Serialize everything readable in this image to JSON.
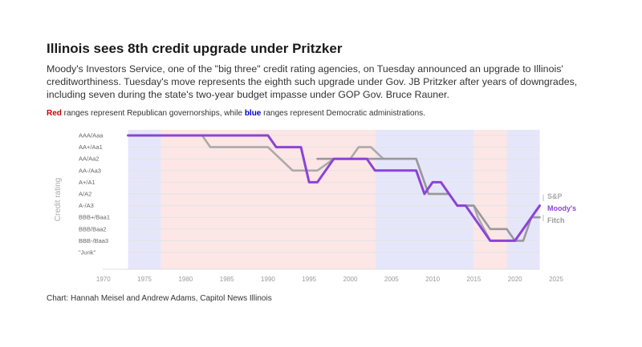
{
  "title": "Illinois sees 8th credit upgrade under Pritzker",
  "subtitle": "Moody's Investors Service, one of the \"big three\" credit rating agencies, on Tuesday announced an upgrade to Illinois' creditworthiness. Tuesday's move represents the eighth such upgrade under Gov. JB Pritzker after years of downgrades, including seven during the state's two-year budget impasse under GOP Gov. Bruce Rauner.",
  "note": {
    "red_word": "Red",
    "mid_text": " ranges represent Republican governorships, while ",
    "blue_word": "blue",
    "end_text": " ranges represent Democratic administrations."
  },
  "source": "Chart: Hannah Meisel and Andrew Adams, Capitol News Illinois",
  "colors": {
    "moodys": "#8b44d6",
    "sp": "#aaaaaa",
    "fitch": "#999999",
    "republican_band": "#fde6e6",
    "democratic_band": "#e6e6fb",
    "gridline": "#e3e3e3"
  },
  "chart_data": {
    "type": "line",
    "title": "Illinois sees 8th credit upgrade under Pritzker",
    "ylabel": "Credit rating",
    "xlim": [
      1967,
      2025
    ],
    "x_ticks": [
      "1970",
      "1975",
      "1980",
      "1985",
      "1990",
      "1995",
      "2000",
      "2005",
      "2010",
      "2015",
      "2020",
      "2025"
    ],
    "y_categories": [
      "AAA/Aaa",
      "AA+/Aa1",
      "AA/Aa2",
      "AA-/Aa3",
      "A+/A1",
      "A/A2",
      "A-/A3",
      "BBB+/Baa1",
      "BBB/Baa2",
      "BBB-/Baa3",
      "\"Junk\""
    ],
    "grid": true,
    "bands": [
      {
        "party": "Democratic",
        "from": 1973,
        "to": 1977
      },
      {
        "party": "Republican",
        "from": 1977,
        "to": 2003
      },
      {
        "party": "Democratic",
        "from": 2003,
        "to": 2015
      },
      {
        "party": "Republican",
        "from": 2015,
        "to": 2019
      },
      {
        "party": "Democratic",
        "from": 2019,
        "to": 2023
      }
    ],
    "series": [
      {
        "name": "S&P",
        "points": [
          [
            1973,
            "AAA/Aaa"
          ],
          [
            1982,
            "AAA/Aaa"
          ],
          [
            1983,
            "AA+/Aa1"
          ],
          [
            1990,
            "AA+/Aa1"
          ],
          [
            1993,
            "AA-/Aa3"
          ],
          [
            1996,
            "AA-/Aa3"
          ],
          [
            1998,
            "AA/Aa2"
          ],
          [
            2000,
            "AA/Aa2"
          ],
          [
            2001,
            "AA+/Aa1"
          ],
          [
            2002.5,
            "AA+/Aa1"
          ],
          [
            2004,
            "AA/Aa2"
          ],
          [
            2008,
            "AA/Aa2"
          ],
          [
            2009,
            "A+/A1"
          ],
          [
            2009.5,
            "A/A2"
          ],
          [
            2012,
            "A/A2"
          ],
          [
            2013,
            "A-/A3"
          ],
          [
            2015,
            "A-/A3"
          ],
          [
            2015.5,
            "BBB+/Baa1"
          ],
          [
            2017,
            "BBB-/Baa3"
          ],
          [
            2019,
            "BBB-/Baa3"
          ],
          [
            2020,
            "BBB-/Baa3"
          ],
          [
            2021,
            "BBB/Baa2"
          ],
          [
            2022,
            "BBB+/Baa1"
          ],
          [
            2023,
            "A-/A3"
          ]
        ]
      },
      {
        "name": "Fitch",
        "points": [
          [
            1996,
            "AA/Aa2"
          ],
          [
            2008,
            "AA/Aa2"
          ],
          [
            2009,
            "A+/A1"
          ],
          [
            2009.5,
            "A/A2"
          ],
          [
            2012,
            "A/A2"
          ],
          [
            2013,
            "A-/A3"
          ],
          [
            2015,
            "A-/A3"
          ],
          [
            2016,
            "BBB+/Baa1"
          ],
          [
            2017,
            "BBB/Baa2"
          ],
          [
            2019,
            "BBB/Baa2"
          ],
          [
            2020,
            "BBB-/Baa3"
          ],
          [
            2021,
            "BBB-/Baa3"
          ],
          [
            2022,
            "BBB+/Baa1"
          ],
          [
            2023,
            "BBB+/Baa1"
          ]
        ]
      },
      {
        "name": "Moody's",
        "points": [
          [
            1973,
            "AAA/Aaa"
          ],
          [
            1990,
            "AAA/Aaa"
          ],
          [
            1991,
            "AA+/Aa1"
          ],
          [
            1994,
            "AA+/Aa1"
          ],
          [
            1995,
            "A+/A1"
          ],
          [
            1996,
            "A+/A1"
          ],
          [
            1998,
            "AA/Aa2"
          ],
          [
            2002,
            "AA/Aa2"
          ],
          [
            2003,
            "AA-/Aa3"
          ],
          [
            2008,
            "AA-/Aa3"
          ],
          [
            2009,
            "A/A2"
          ],
          [
            2010,
            "A+/A1"
          ],
          [
            2011,
            "A+/A1"
          ],
          [
            2013,
            "A-/A3"
          ],
          [
            2014,
            "A-/A3"
          ],
          [
            2016,
            "BBB/Baa2"
          ],
          [
            2017,
            "BBB-/Baa3"
          ],
          [
            2020,
            "BBB-/Baa3"
          ],
          [
            2021,
            "BBB/Baa2"
          ],
          [
            2023,
            "A-/A3"
          ]
        ]
      }
    ]
  }
}
